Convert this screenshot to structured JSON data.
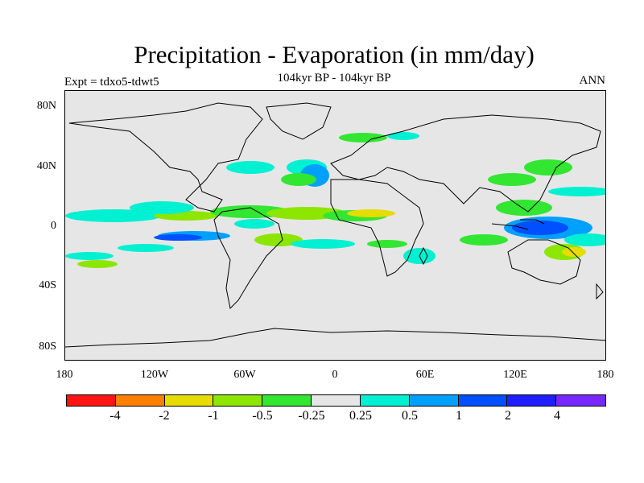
{
  "title": "Precipitation - Evaporation (in mm/day)",
  "subtitle": "104kyr BP - 104kyr BP",
  "left_label": "Expt = tdxo5-tdwt5",
  "right_label": "ANN",
  "lat_ticks": [
    "80N",
    "40N",
    "0",
    "40S",
    "80S"
  ],
  "lon_ticks": [
    "180",
    "120W",
    "60W",
    "0",
    "60E",
    "120E",
    "180"
  ],
  "colorbar": {
    "colors": [
      "#ff1414",
      "#ff7f00",
      "#e6dc00",
      "#8ce600",
      "#32e632",
      "#e6e6e6",
      "#00f0d2",
      "#00a0ff",
      "#0050ff",
      "#1e1eff",
      "#7828ff"
    ],
    "labels": [
      "-4",
      "-2",
      "-1",
      "-0.5",
      "-0.25",
      "0.25",
      "0.5",
      "1",
      "2",
      "4"
    ]
  }
}
